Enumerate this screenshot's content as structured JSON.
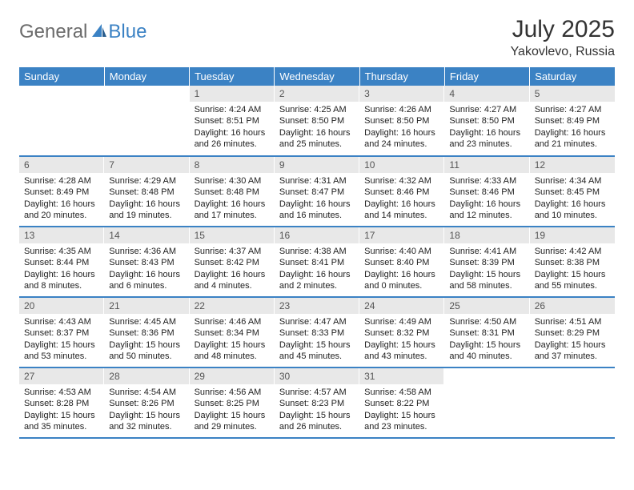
{
  "logo": {
    "general": "General",
    "blue": "Blue"
  },
  "title": "July 2025",
  "location": "Yakovlevo, Russia",
  "day_headers": [
    "Sunday",
    "Monday",
    "Tuesday",
    "Wednesday",
    "Thursday",
    "Friday",
    "Saturday"
  ],
  "colors": {
    "header_bg": "#3b82c4",
    "header_text": "#ffffff",
    "daynum_bg": "#e8e8e8",
    "daynum_text": "#555555",
    "body_text": "#222222",
    "border": "#3b82c4",
    "logo_gray": "#6b6b6b",
    "logo_blue": "#3b82c4"
  },
  "weeks": [
    [
      null,
      null,
      {
        "n": "1",
        "sr": "4:24 AM",
        "ss": "8:51 PM",
        "dl": "16 hours and 26 minutes."
      },
      {
        "n": "2",
        "sr": "4:25 AM",
        "ss": "8:50 PM",
        "dl": "16 hours and 25 minutes."
      },
      {
        "n": "3",
        "sr": "4:26 AM",
        "ss": "8:50 PM",
        "dl": "16 hours and 24 minutes."
      },
      {
        "n": "4",
        "sr": "4:27 AM",
        "ss": "8:50 PM",
        "dl": "16 hours and 23 minutes."
      },
      {
        "n": "5",
        "sr": "4:27 AM",
        "ss": "8:49 PM",
        "dl": "16 hours and 21 minutes."
      }
    ],
    [
      {
        "n": "6",
        "sr": "4:28 AM",
        "ss": "8:49 PM",
        "dl": "16 hours and 20 minutes."
      },
      {
        "n": "7",
        "sr": "4:29 AM",
        "ss": "8:48 PM",
        "dl": "16 hours and 19 minutes."
      },
      {
        "n": "8",
        "sr": "4:30 AM",
        "ss": "8:48 PM",
        "dl": "16 hours and 17 minutes."
      },
      {
        "n": "9",
        "sr": "4:31 AM",
        "ss": "8:47 PM",
        "dl": "16 hours and 16 minutes."
      },
      {
        "n": "10",
        "sr": "4:32 AM",
        "ss": "8:46 PM",
        "dl": "16 hours and 14 minutes."
      },
      {
        "n": "11",
        "sr": "4:33 AM",
        "ss": "8:46 PM",
        "dl": "16 hours and 12 minutes."
      },
      {
        "n": "12",
        "sr": "4:34 AM",
        "ss": "8:45 PM",
        "dl": "16 hours and 10 minutes."
      }
    ],
    [
      {
        "n": "13",
        "sr": "4:35 AM",
        "ss": "8:44 PM",
        "dl": "16 hours and 8 minutes."
      },
      {
        "n": "14",
        "sr": "4:36 AM",
        "ss": "8:43 PM",
        "dl": "16 hours and 6 minutes."
      },
      {
        "n": "15",
        "sr": "4:37 AM",
        "ss": "8:42 PM",
        "dl": "16 hours and 4 minutes."
      },
      {
        "n": "16",
        "sr": "4:38 AM",
        "ss": "8:41 PM",
        "dl": "16 hours and 2 minutes."
      },
      {
        "n": "17",
        "sr": "4:40 AM",
        "ss": "8:40 PM",
        "dl": "16 hours and 0 minutes."
      },
      {
        "n": "18",
        "sr": "4:41 AM",
        "ss": "8:39 PM",
        "dl": "15 hours and 58 minutes."
      },
      {
        "n": "19",
        "sr": "4:42 AM",
        "ss": "8:38 PM",
        "dl": "15 hours and 55 minutes."
      }
    ],
    [
      {
        "n": "20",
        "sr": "4:43 AM",
        "ss": "8:37 PM",
        "dl": "15 hours and 53 minutes."
      },
      {
        "n": "21",
        "sr": "4:45 AM",
        "ss": "8:36 PM",
        "dl": "15 hours and 50 minutes."
      },
      {
        "n": "22",
        "sr": "4:46 AM",
        "ss": "8:34 PM",
        "dl": "15 hours and 48 minutes."
      },
      {
        "n": "23",
        "sr": "4:47 AM",
        "ss": "8:33 PM",
        "dl": "15 hours and 45 minutes."
      },
      {
        "n": "24",
        "sr": "4:49 AM",
        "ss": "8:32 PM",
        "dl": "15 hours and 43 minutes."
      },
      {
        "n": "25",
        "sr": "4:50 AM",
        "ss": "8:31 PM",
        "dl": "15 hours and 40 minutes."
      },
      {
        "n": "26",
        "sr": "4:51 AM",
        "ss": "8:29 PM",
        "dl": "15 hours and 37 minutes."
      }
    ],
    [
      {
        "n": "27",
        "sr": "4:53 AM",
        "ss": "8:28 PM",
        "dl": "15 hours and 35 minutes."
      },
      {
        "n": "28",
        "sr": "4:54 AM",
        "ss": "8:26 PM",
        "dl": "15 hours and 32 minutes."
      },
      {
        "n": "29",
        "sr": "4:56 AM",
        "ss": "8:25 PM",
        "dl": "15 hours and 29 minutes."
      },
      {
        "n": "30",
        "sr": "4:57 AM",
        "ss": "8:23 PM",
        "dl": "15 hours and 26 minutes."
      },
      {
        "n": "31",
        "sr": "4:58 AM",
        "ss": "8:22 PM",
        "dl": "15 hours and 23 minutes."
      },
      null,
      null
    ]
  ],
  "labels": {
    "sunrise": "Sunrise: ",
    "sunset": "Sunset: ",
    "daylight": "Daylight: "
  }
}
